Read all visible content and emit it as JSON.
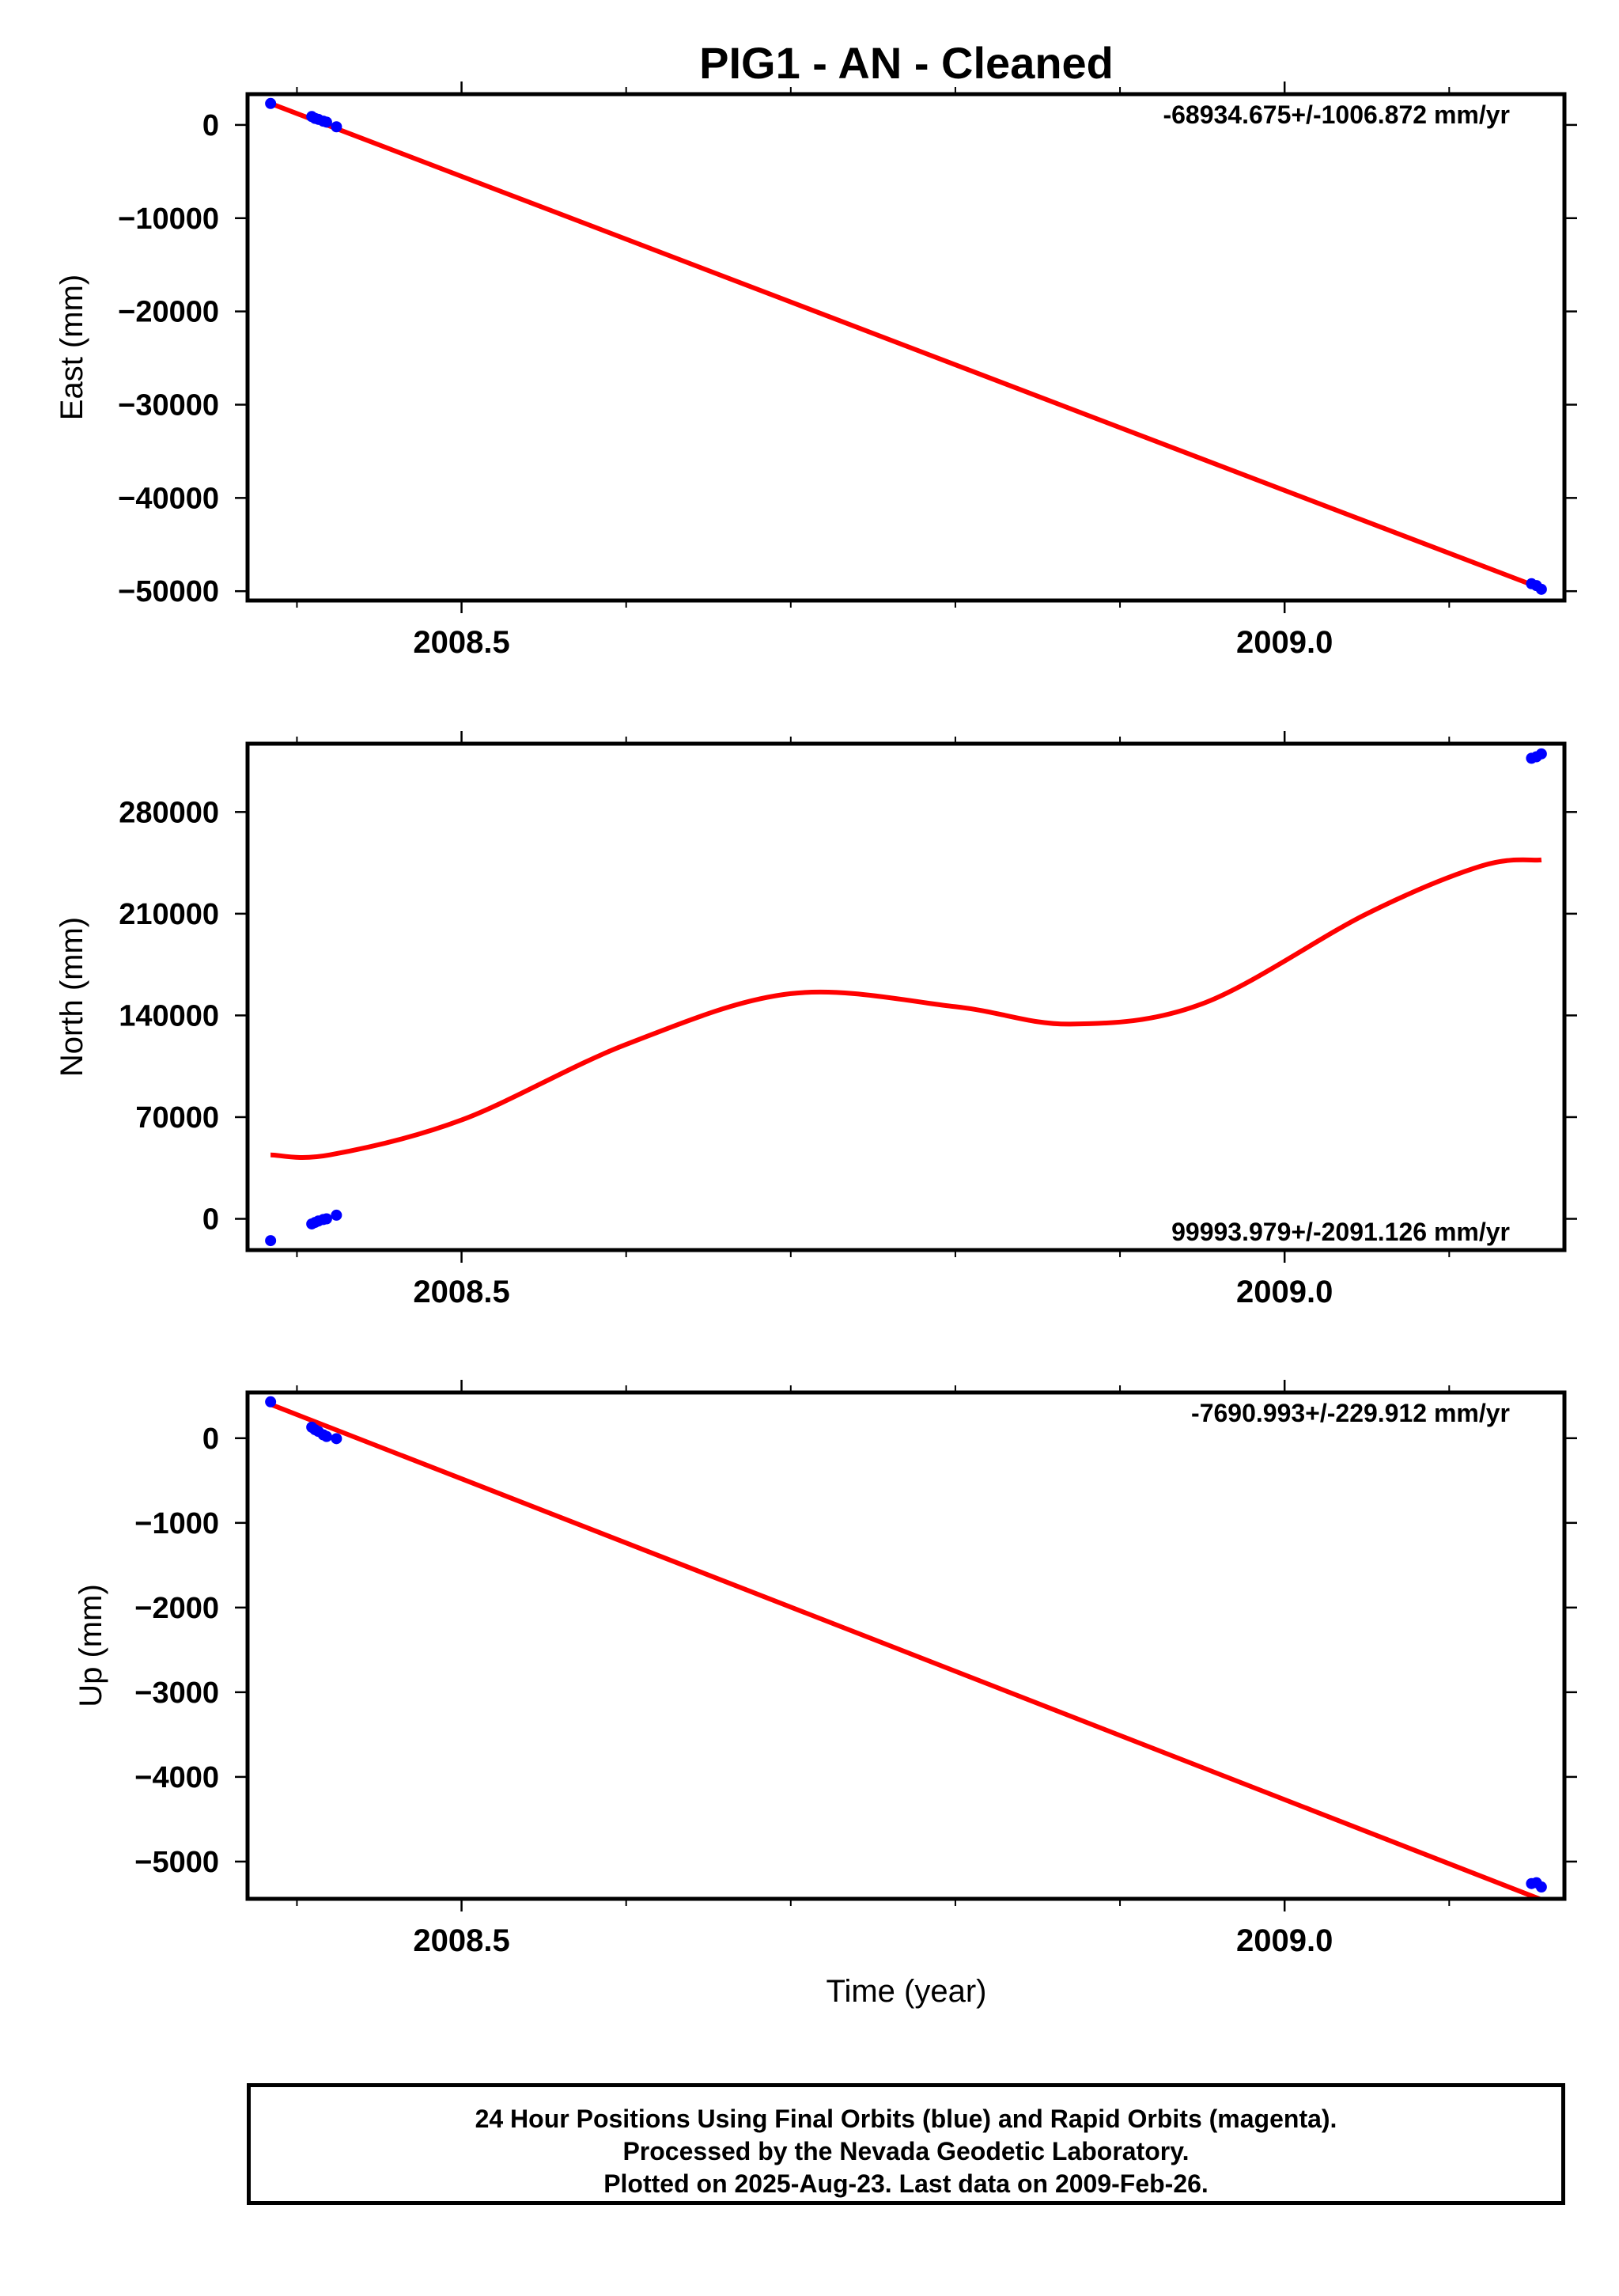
{
  "title": "PIG1  - AN - Cleaned",
  "footer": {
    "line1": "24 Hour Positions Using Final Orbits (blue) and Rapid Orbits (magenta).",
    "line2": "Processed by the Nevada Geodetic Laboratory.",
    "line3": "Plotted on 2025-Aug-23. Last data on 2009-Feb-26."
  },
  "colors": {
    "points": "#0000ff",
    "fit": "#ff0000",
    "frame": "#000000"
  },
  "chart_data": [
    {
      "type": "scatter",
      "ylabel": "East (mm)",
      "xlabel": "",
      "xlim": [
        2008.37,
        2009.17
      ],
      "ylim": [
        -51000,
        3300
      ],
      "x_ticks": [
        2008.5,
        2009.0
      ],
      "x_tick_labels": [
        "2008.5",
        "2009.0"
      ],
      "y_ticks": [
        0,
        -10000,
        -20000,
        -30000,
        -40000,
        -50000
      ],
      "y_tick_labels": [
        "0",
        "−10000",
        "−20000",
        "−30000",
        "−40000",
        "−50000"
      ],
      "rate_text": "-68934.675+/-1006.872 mm/yr",
      "rate_position": "top-right",
      "series": [
        {
          "type": "scatter",
          "color": "#0000ff",
          "x": [
            2008.384,
            2008.409,
            2008.411,
            2008.413,
            2008.416,
            2008.418,
            2008.424,
            2009.15,
            2009.153,
            2009.156
          ],
          "y": [
            2300,
            900,
            700,
            600,
            400,
            300,
            -200,
            -49200,
            -49400,
            -49800
          ]
        },
        {
          "type": "line",
          "color": "#ff0000",
          "x": [
            2008.384,
            2009.156
          ],
          "y": [
            2300,
            -49700
          ]
        }
      ]
    },
    {
      "type": "scatter",
      "ylabel": "North (mm)",
      "xlabel": "",
      "xlim": [
        2008.37,
        2009.17
      ],
      "ylim": [
        -21500,
        327000
      ],
      "x_ticks": [
        2008.5,
        2009.0
      ],
      "x_tick_labels": [
        "2008.5",
        "2009.0"
      ],
      "y_ticks": [
        0,
        70000,
        140000,
        210000,
        280000
      ],
      "y_tick_labels": [
        "0",
        "70000",
        "140000",
        "210000",
        "280000"
      ],
      "rate_text": "99993.979+/-2091.126 mm/yr",
      "rate_position": "bottom-right",
      "series": [
        {
          "type": "scatter",
          "color": "#0000ff",
          "x": [
            2008.384,
            2008.409,
            2008.411,
            2008.413,
            2008.416,
            2008.418,
            2008.424,
            2009.15,
            2009.153,
            2009.156
          ],
          "y": [
            -15000,
            -3500,
            -2500,
            -1500,
            -500,
            0,
            2500,
            317000,
            318000,
            320000
          ]
        },
        {
          "type": "line",
          "color": "#ff0000",
          "x": [
            2008.384,
            2008.42,
            2008.5,
            2008.6,
            2008.7,
            2008.8,
            2008.87,
            2008.95,
            2009.05,
            2009.12,
            2009.156
          ],
          "y": [
            44000,
            44000,
            68000,
            120000,
            155000,
            146000,
            134000,
            148000,
            210000,
            243000,
            247000
          ]
        }
      ]
    },
    {
      "type": "scatter",
      "ylabel": "Up (mm)",
      "xlabel": "Time (year)",
      "xlim": [
        2008.37,
        2009.17
      ],
      "ylim": [
        -5440,
        540
      ],
      "x_ticks": [
        2008.5,
        2009.0
      ],
      "x_tick_labels": [
        "2008.5",
        "2009.0"
      ],
      "y_ticks": [
        0,
        -1000,
        -2000,
        -3000,
        -4000,
        -5000
      ],
      "y_tick_labels": [
        "0",
        "−1000",
        "−2000",
        "−3000",
        "−4000",
        "−5000"
      ],
      "rate_text": "-7690.993+/-229.912 mm/yr",
      "rate_position": "top-right",
      "series": [
        {
          "type": "scatter",
          "color": "#0000ff",
          "x": [
            2008.384,
            2008.409,
            2008.411,
            2008.413,
            2008.416,
            2008.418,
            2008.424,
            2009.15,
            2009.153,
            2009.156
          ],
          "y": [
            430,
            130,
            100,
            80,
            40,
            20,
            -5,
            -5260,
            -5250,
            -5300
          ]
        },
        {
          "type": "line",
          "color": "#ff0000",
          "x": [
            2008.384,
            2009.156
          ],
          "y": [
            400,
            -5450
          ]
        }
      ]
    }
  ]
}
